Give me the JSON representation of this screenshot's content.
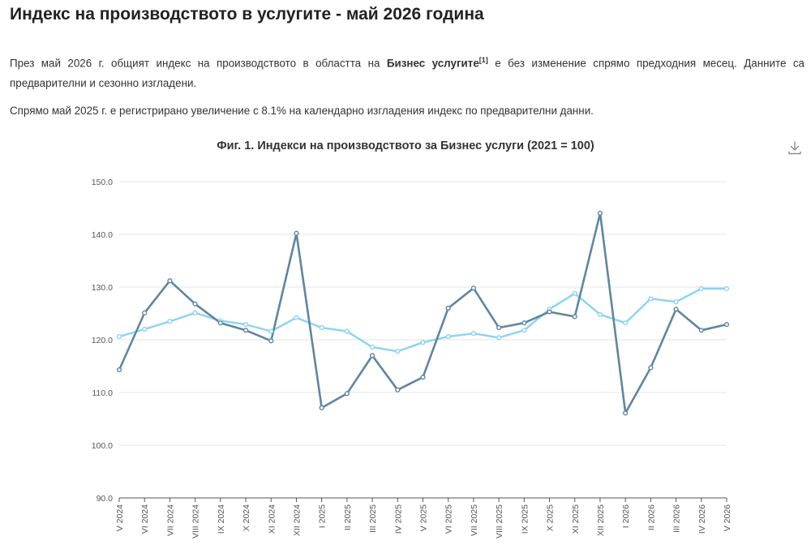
{
  "page": {
    "title": "Индекс на производството в услугите - май 2026 година",
    "intro_before": "През май 2026 г. общият индекс на производството в областта на ",
    "intro_bold": "Бизнес услугите",
    "intro_sup": "[1]",
    "intro_after": " е без изменение спрямо предходния месец. Данните са предварителни и сезонно изгладени.",
    "paragraph2": "Спрямо май 2025 г. е регистрирано увеличение с 8.1% на календарно изгладения индекс по предварителни данни."
  },
  "chart_data": {
    "type": "line",
    "title": "Фиг. 1. Индекси на производството за Бизнес услуги (2021 = 100)",
    "categories": [
      "V 2024",
      "VI 2024",
      "VII 2024",
      "VIII 2024",
      "IX 2024",
      "X 2024",
      "XI 2024",
      "XII 2024",
      "I 2025",
      "II 2025",
      "III 2025",
      "IV 2025",
      "V 2025",
      "VI 2025",
      "VII 2025",
      "VIII 2025",
      "IX 2025",
      "X 2025",
      "XI 2025",
      "XII 2025",
      "I 2026",
      "II 2026",
      "III 2026",
      "IV 2026",
      "V 2026"
    ],
    "series": [
      {
        "color": "#5e86a2",
        "values": [
          114.3,
          125.1,
          131.2,
          126.8,
          123.2,
          121.8,
          119.8,
          140.2,
          107.1,
          109.8,
          117.0,
          110.5,
          112.9,
          126.0,
          129.8,
          122.3,
          123.2,
          125.3,
          124.4,
          144.0,
          106.1,
          114.7,
          125.8,
          121.8,
          122.9
        ]
      },
      {
        "color": "#8ad4f2",
        "values": [
          120.6,
          122.0,
          123.5,
          125.1,
          123.6,
          122.9,
          121.6,
          124.2,
          122.3,
          121.6,
          118.6,
          117.8,
          119.5,
          120.6,
          121.2,
          120.4,
          121.8,
          125.8,
          128.8,
          124.8,
          123.2,
          127.8,
          127.2,
          129.7,
          129.7
        ]
      }
    ],
    "y_ticks": [
      "150.0",
      "140.0",
      "130.0",
      "120.0",
      "110.0",
      "100.0",
      "90.0"
    ],
    "ylim": [
      90,
      150
    ],
    "grid": true,
    "legend": "none"
  }
}
